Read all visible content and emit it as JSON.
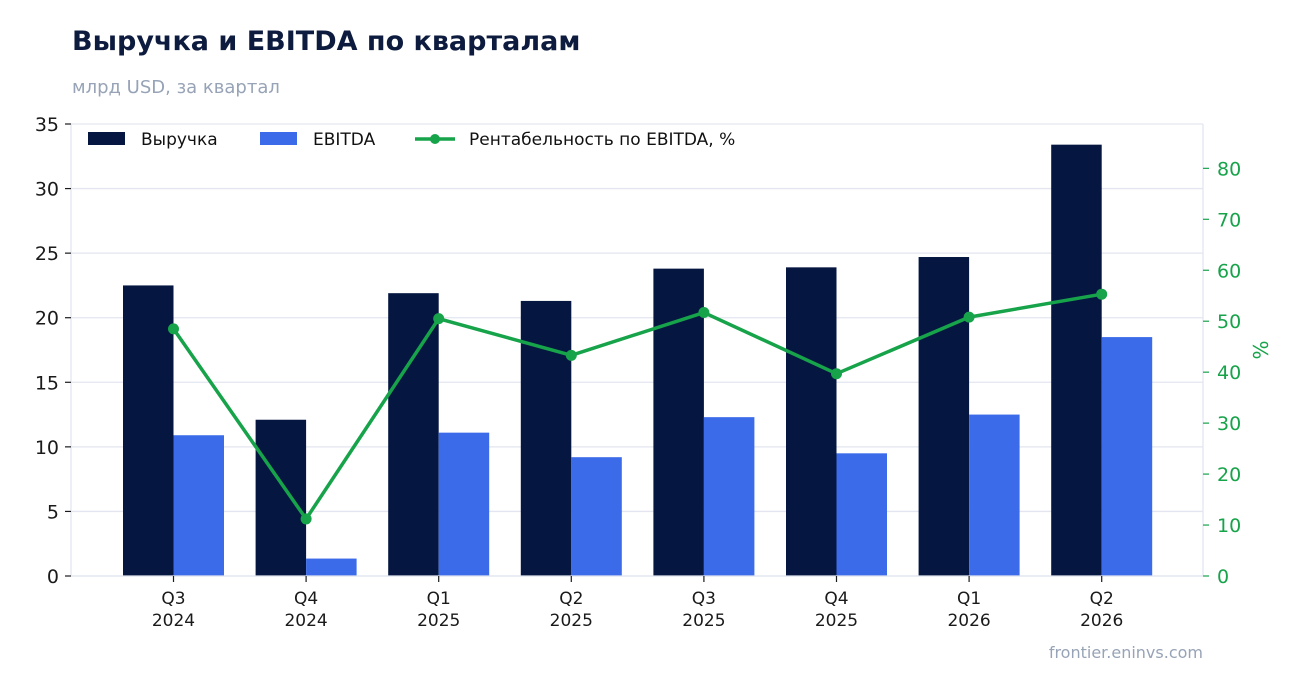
{
  "title": "Выручка и EBITDA по кварталам",
  "subtitle": "млрд USD, за квартал",
  "source": "frontier.eninvs.com",
  "colors": {
    "revenue": "#051640",
    "ebitda": "#3b6be8",
    "margin": "#17a34a",
    "grid": "#e3e6f0",
    "axis_text": "#1a1a1a",
    "right_axis_text": "#17a34a"
  },
  "chart_data": {
    "type": "bar",
    "categories": [
      [
        "Q3",
        "2024"
      ],
      [
        "Q4",
        "2024"
      ],
      [
        "Q1",
        "2025"
      ],
      [
        "Q2",
        "2025"
      ],
      [
        "Q3",
        "2025"
      ],
      [
        "Q4",
        "2025"
      ],
      [
        "Q1",
        "2026"
      ],
      [
        "Q2",
        "2026"
      ]
    ],
    "series": [
      {
        "name": "Выручка",
        "kind": "bar",
        "axis": "left",
        "values": [
          22.5,
          12.1,
          21.9,
          21.3,
          23.8,
          23.9,
          24.7,
          33.4
        ]
      },
      {
        "name": "EBITDA",
        "kind": "bar",
        "axis": "left",
        "values": [
          10.9,
          1.35,
          11.1,
          9.2,
          12.3,
          9.5,
          12.5,
          18.5
        ]
      },
      {
        "name": "Рентабельность по EBITDA, %",
        "kind": "line",
        "axis": "right",
        "values": [
          48.5,
          11.2,
          50.5,
          43.3,
          51.7,
          39.7,
          50.8,
          55.3
        ]
      }
    ],
    "y_left": {
      "min": 0,
      "max": 35,
      "ticks": [
        0,
        5,
        10,
        15,
        20,
        25,
        30,
        35
      ]
    },
    "y_right": {
      "min": 0,
      "max": 88.7,
      "ticks": [
        0,
        10,
        20,
        30,
        40,
        50,
        60,
        70,
        80
      ],
      "label": "%"
    },
    "grid": true,
    "legend_position": "top-left"
  }
}
